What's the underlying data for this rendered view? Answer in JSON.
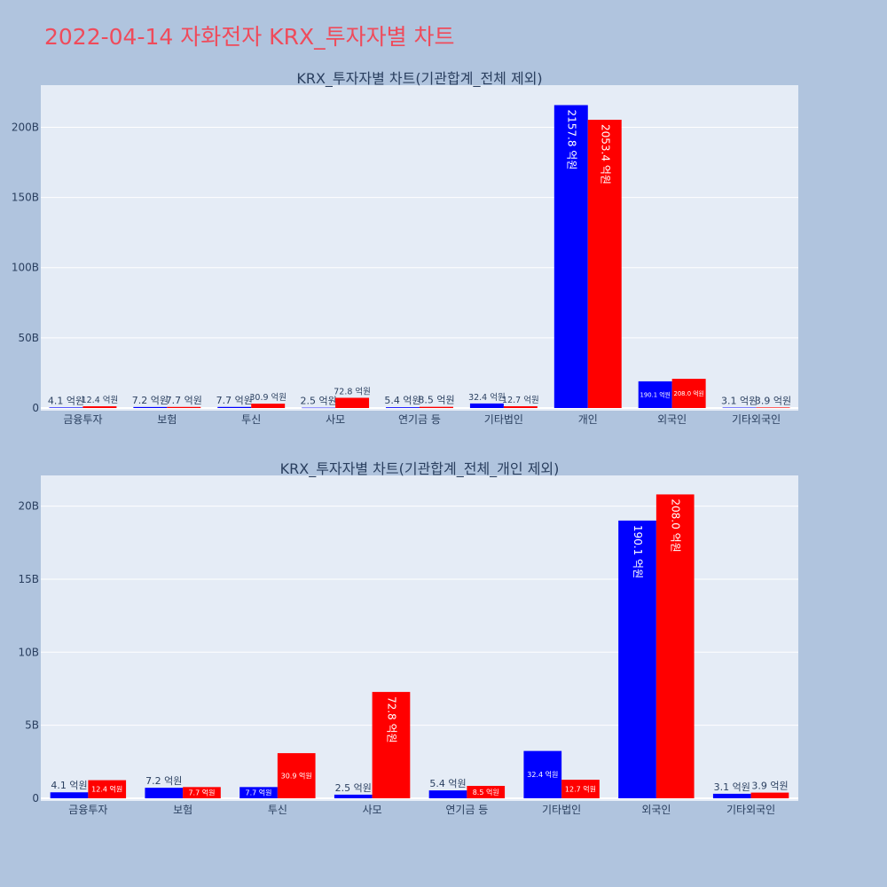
{
  "page_title": "2022-04-14 자화전자 KRX_투자자별 차트",
  "colors": {
    "series_1": "#0000ff",
    "series_2": "#ff0000",
    "plot_bg": "#e5ecf6",
    "page_bg": "#b0c4de",
    "title": "#ef4b5b",
    "text": "#2a3f5f"
  },
  "chart_data": [
    {
      "type": "bar",
      "title": "KRX_투자자별 차트(기관합계_전체 제외)",
      "categories": [
        "금융투자",
        "보험",
        "투신",
        "사모",
        "연기금 등",
        "기타법인",
        "개인",
        "외국인",
        "기타외국인"
      ],
      "ylim": [
        0,
        230
      ],
      "yunit": "B",
      "ytick_values": [
        0,
        50,
        100,
        150,
        200
      ],
      "ytick_labels": [
        "0",
        "50B",
        "100B",
        "150B",
        "200B"
      ],
      "grid": true,
      "legend": "none",
      "series": [
        {
          "values": [
            0.41,
            0.72,
            0.77,
            0.25,
            0.54,
            3.24,
            215.78,
            19.01,
            0.31
          ],
          "labels": [
            "4.1 억원",
            "7.2 억원",
            "7.7 억원",
            "2.5 억원",
            "5.4 억원",
            "32.4 억원",
            "2157.8 억원",
            "190.1 억원",
            "3.1 억원"
          ]
        },
        {
          "values": [
            1.24,
            0.77,
            3.09,
            7.28,
            0.85,
            1.27,
            205.34,
            20.8,
            0.39
          ],
          "labels": [
            "12.4 억원",
            "7.7 억원",
            "30.9 억원",
            "72.8 억원",
            "8.5 억원",
            "12.7 억원",
            "2053.4 억원",
            "208.0 억원",
            "3.9 억원"
          ]
        }
      ]
    },
    {
      "type": "bar",
      "title": "KRX_투자자별 차트(기관합계_전체_개인 제외)",
      "categories": [
        "금융투자",
        "보험",
        "투신",
        "사모",
        "연기금 등",
        "기타법인",
        "외국인",
        "기타외국인"
      ],
      "ylim": [
        0,
        22.1
      ],
      "yunit": "B",
      "ytick_values": [
        0,
        5,
        10,
        15,
        20
      ],
      "ytick_labels": [
        "0",
        "5B",
        "10B",
        "15B",
        "20B"
      ],
      "grid": true,
      "legend": "none",
      "series": [
        {
          "values": [
            0.41,
            0.72,
            0.77,
            0.25,
            0.54,
            3.24,
            19.01,
            0.31
          ],
          "labels": [
            "4.1 억원",
            "7.2 억원",
            "7.7 억원",
            "2.5 억원",
            "5.4 억원",
            "32.4 억원",
            "190.1 억원",
            "3.1 억원"
          ]
        },
        {
          "values": [
            1.24,
            0.77,
            3.09,
            7.28,
            0.85,
            1.27,
            20.8,
            0.39
          ],
          "labels": [
            "12.4 억원",
            "7.7 억원",
            "30.9 억원",
            "72.8 억원",
            "8.5 억원",
            "12.7 억원",
            "208.0 억원",
            "3.9 억원"
          ]
        }
      ]
    }
  ]
}
